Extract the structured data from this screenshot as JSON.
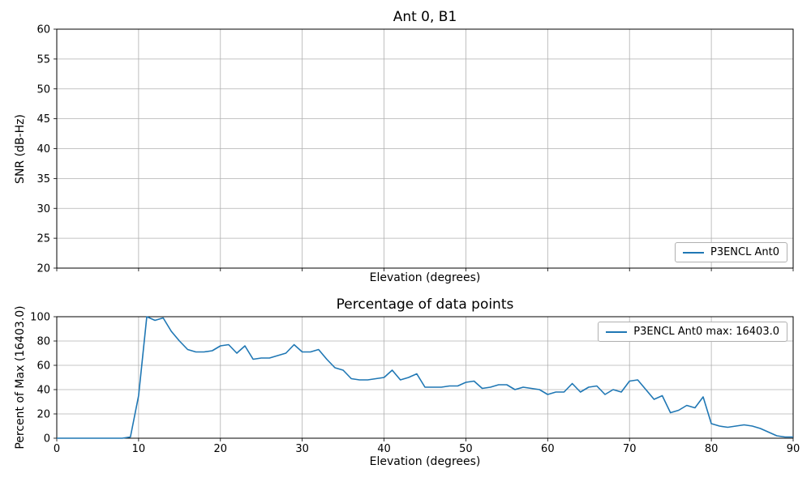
{
  "figure": {
    "background": "#ffffff",
    "grid_color": "#b0b0b0",
    "axes_color": "#000000"
  },
  "chart_data": [
    {
      "type": "line",
      "title": "Ant 0, B1",
      "xlabel": "Elevation (degrees)",
      "ylabel": "SNR (dB-Hz)",
      "xlim": [
        0,
        90
      ],
      "ylim": [
        20,
        60
      ],
      "xticks": [
        0,
        10,
        20,
        30,
        40,
        50,
        60,
        70,
        80,
        90
      ],
      "show_xtick_labels": false,
      "yticks": [
        20,
        25,
        30,
        35,
        40,
        45,
        50,
        55,
        60
      ],
      "grid": true,
      "legend": {
        "label": "P3ENCL Ant0",
        "position": "lower right"
      },
      "line_color": "#1f77b4",
      "series": [
        {
          "name": "P3ENCL Ant0",
          "x": [],
          "y": []
        }
      ]
    },
    {
      "type": "line",
      "title": "Percentage of data points",
      "xlabel": "Elevation (degrees)",
      "ylabel": "Percent of Max (16403.0)",
      "xlim": [
        0,
        90
      ],
      "ylim": [
        0,
        100
      ],
      "xticks": [
        0,
        10,
        20,
        30,
        40,
        50,
        60,
        70,
        80,
        90
      ],
      "show_xtick_labels": true,
      "yticks": [
        0,
        20,
        40,
        60,
        80,
        100
      ],
      "grid": true,
      "max_value": 16403.0,
      "legend": {
        "label": "P3ENCL Ant0 max: 16403.0",
        "position": "upper right"
      },
      "line_color": "#1f77b4",
      "series": [
        {
          "name": "P3ENCL Ant0",
          "x": [
            0,
            1,
            2,
            3,
            4,
            5,
            6,
            7,
            8,
            9,
            10,
            11,
            12,
            13,
            14,
            15,
            16,
            17,
            18,
            19,
            20,
            21,
            22,
            23,
            24,
            25,
            26,
            27,
            28,
            29,
            30,
            31,
            32,
            33,
            34,
            35,
            36,
            37,
            38,
            39,
            40,
            41,
            42,
            43,
            44,
            45,
            46,
            47,
            48,
            49,
            50,
            51,
            52,
            53,
            54,
            55,
            56,
            57,
            58,
            59,
            60,
            61,
            62,
            63,
            64,
            65,
            66,
            67,
            68,
            69,
            70,
            71,
            72,
            73,
            74,
            75,
            76,
            77,
            78,
            79,
            80,
            81,
            82,
            83,
            84,
            85,
            86,
            87,
            88,
            89,
            90
          ],
          "y": [
            0,
            0,
            0,
            0,
            0,
            0,
            0,
            0,
            0,
            1,
            35,
            100,
            97,
            99,
            88,
            80,
            73,
            71,
            71,
            72,
            76,
            77,
            70,
            76,
            65,
            66,
            66,
            68,
            70,
            77,
            71,
            71,
            73,
            65,
            58,
            56,
            49,
            48,
            48,
            49,
            50,
            56,
            48,
            50,
            53,
            42,
            42,
            42,
            43,
            43,
            46,
            47,
            41,
            42,
            44,
            44,
            40,
            42,
            41,
            40,
            36,
            38,
            38,
            45,
            38,
            42,
            43,
            36,
            40,
            38,
            47,
            48,
            40,
            32,
            35,
            21,
            23,
            27,
            25,
            34,
            12,
            10,
            9,
            10,
            11,
            10,
            8,
            5,
            2,
            1,
            1
          ]
        }
      ]
    }
  ]
}
